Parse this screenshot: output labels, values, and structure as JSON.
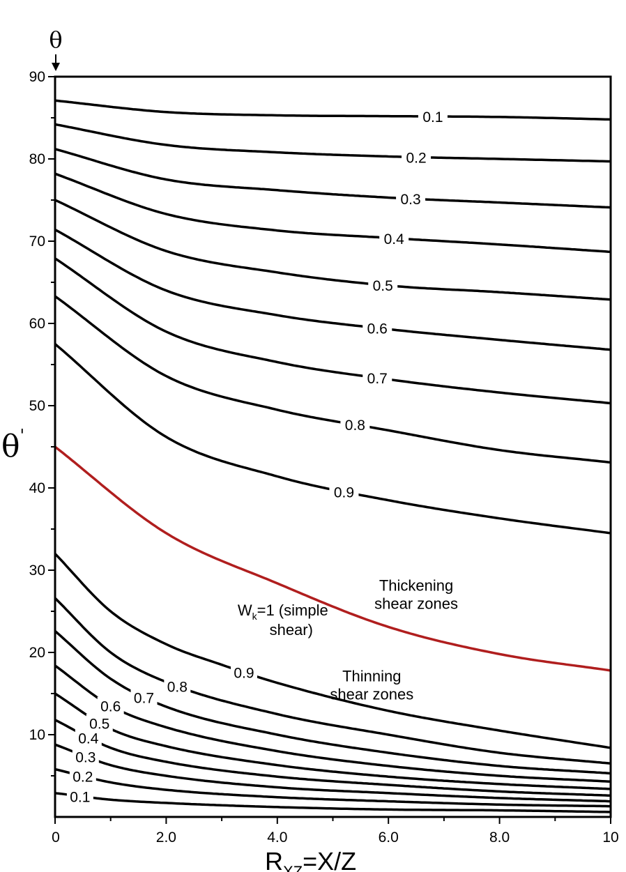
{
  "chart_data": {
    "type": "line",
    "top_label": "θ",
    "ylabel": "θ'",
    "xlabel": {
      "main": "R",
      "sub": "XZ",
      "rest": "=X/Z"
    },
    "xlim": [
      0,
      10
    ],
    "ylim": [
      0,
      90
    ],
    "x_ticks": [
      {
        "value": 0,
        "label": "0"
      },
      {
        "value": 2,
        "label": "2.0"
      },
      {
        "value": 4,
        "label": "4.0"
      },
      {
        "value": 6,
        "label": "6.0"
      },
      {
        "value": 8,
        "label": "8.0"
      },
      {
        "value": 10,
        "label": "10"
      }
    ],
    "y_ticks": [
      {
        "value": 10,
        "label": "10"
      },
      {
        "value": 20,
        "label": "20"
      },
      {
        "value": 30,
        "label": "30"
      },
      {
        "value": 40,
        "label": "40"
      },
      {
        "value": 50,
        "label": "50"
      },
      {
        "value": 60,
        "label": "60"
      },
      {
        "value": 70,
        "label": "70"
      },
      {
        "value": 80,
        "label": "80"
      },
      {
        "value": 90,
        "label": "90"
      }
    ],
    "grid": false,
    "series": [
      {
        "name": "0.1",
        "group": "thickening",
        "color": "#000000",
        "x": [
          0,
          2,
          4,
          6,
          8,
          10
        ],
        "y": [
          87.1,
          85.7,
          85.3,
          85.2,
          85.1,
          84.8
        ],
        "label_at": 6.8
      },
      {
        "name": "0.2",
        "group": "thickening",
        "color": "#000000",
        "x": [
          0,
          2,
          4,
          6,
          8,
          10
        ],
        "y": [
          84.2,
          81.7,
          80.8,
          80.3,
          80.0,
          79.7
        ],
        "label_at": 6.5
      },
      {
        "name": "0.3",
        "group": "thickening",
        "color": "#000000",
        "x": [
          0,
          2,
          4,
          6,
          8,
          10
        ],
        "y": [
          81.2,
          77.5,
          76.2,
          75.3,
          74.7,
          74.1
        ],
        "label_at": 6.4
      },
      {
        "name": "0.4",
        "group": "thickening",
        "color": "#000000",
        "x": [
          0,
          2,
          4,
          6,
          8,
          10
        ],
        "y": [
          78.2,
          73.3,
          71.3,
          70.4,
          69.6,
          68.7
        ],
        "label_at": 6.1
      },
      {
        "name": "0.5",
        "group": "thickening",
        "color": "#000000",
        "x": [
          0,
          2,
          4,
          6,
          8,
          10
        ],
        "y": [
          75.0,
          68.8,
          66.2,
          64.6,
          63.8,
          62.9
        ],
        "label_at": 5.9
      },
      {
        "name": "0.6",
        "group": "thickening",
        "color": "#000000",
        "x": [
          0,
          2,
          4,
          6,
          8,
          10
        ],
        "y": [
          71.4,
          64.0,
          61.0,
          59.3,
          58.0,
          56.8
        ],
        "label_at": 5.8
      },
      {
        "name": "0.7",
        "group": "thickening",
        "color": "#000000",
        "x": [
          0,
          2,
          4,
          6,
          8,
          10
        ],
        "y": [
          67.9,
          59.0,
          55.3,
          53.2,
          51.6,
          50.3
        ],
        "label_at": 5.8
      },
      {
        "name": "0.8",
        "group": "thickening",
        "color": "#000000",
        "x": [
          0,
          2,
          4,
          6,
          8,
          10
        ],
        "y": [
          63.3,
          53.6,
          49.5,
          47.0,
          44.6,
          43.1
        ],
        "label_at": 5.4
      },
      {
        "name": "0.9",
        "group": "thickening",
        "color": "#000000",
        "x": [
          0,
          2,
          4,
          6,
          8,
          10
        ],
        "y": [
          57.5,
          46.2,
          41.4,
          38.5,
          36.3,
          34.5
        ],
        "label_at": 5.2
      },
      {
        "name": "Wk=1 (simple shear)",
        "group": "simple",
        "color": "#b01e1e",
        "x": [
          0,
          2,
          4,
          6,
          8,
          10
        ],
        "y": [
          45.0,
          34.5,
          28.4,
          23.1,
          19.8,
          17.8
        ],
        "label_at": null
      },
      {
        "name": "0.9",
        "group": "thinning",
        "color": "#000000",
        "x": [
          0,
          1,
          2,
          3,
          4,
          6,
          8,
          10
        ],
        "y": [
          32.0,
          25.0,
          21.0,
          18.5,
          16.3,
          12.9,
          10.5,
          8.4
        ],
        "label_at": 3.4
      },
      {
        "name": "0.8",
        "group": "thinning",
        "color": "#000000",
        "x": [
          0,
          1,
          2,
          4,
          6,
          8,
          10
        ],
        "y": [
          26.6,
          20.0,
          16.4,
          12.5,
          10.0,
          7.8,
          6.5
        ],
        "label_at": 2.2
      },
      {
        "name": "0.7",
        "group": "thinning",
        "color": "#000000",
        "x": [
          0,
          1,
          2,
          4,
          6,
          8,
          10
        ],
        "y": [
          22.6,
          16.8,
          13.4,
          10.0,
          7.8,
          6.2,
          5.3
        ],
        "label_at": 1.6
      },
      {
        "name": "0.6",
        "group": "thinning",
        "color": "#000000",
        "x": [
          0,
          1,
          2,
          4,
          6,
          8,
          10
        ],
        "y": [
          18.4,
          13.5,
          10.9,
          8.0,
          6.2,
          5.0,
          4.3
        ],
        "label_at": 1.0
      },
      {
        "name": "0.5",
        "group": "thinning",
        "color": "#000000",
        "x": [
          0,
          1,
          2,
          4,
          6,
          8,
          10
        ],
        "y": [
          15.0,
          10.7,
          8.6,
          6.3,
          4.9,
          4.0,
          3.4
        ],
        "label_at": 0.8
      },
      {
        "name": "0.4",
        "group": "thinning",
        "color": "#000000",
        "x": [
          0,
          1,
          2,
          4,
          6,
          8,
          10
        ],
        "y": [
          11.8,
          8.4,
          6.7,
          4.9,
          3.9,
          3.1,
          2.6
        ],
        "label_at": 0.6
      },
      {
        "name": "0.3",
        "group": "thinning",
        "color": "#000000",
        "x": [
          0,
          1,
          2,
          4,
          6,
          8,
          10
        ],
        "y": [
          8.8,
          6.3,
          5.0,
          3.6,
          2.9,
          2.3,
          1.9
        ],
        "label_at": 0.55
      },
      {
        "name": "0.2",
        "group": "thinning",
        "color": "#000000",
        "x": [
          0,
          1,
          2,
          4,
          6,
          8,
          10
        ],
        "y": [
          5.8,
          4.2,
          3.3,
          2.4,
          1.9,
          1.5,
          1.3
        ],
        "label_at": 0.5
      },
      {
        "name": "0.1",
        "group": "thinning",
        "color": "#000000",
        "x": [
          0,
          1,
          2,
          4,
          6,
          8,
          10
        ],
        "y": [
          2.9,
          2.1,
          1.7,
          1.2,
          0.9,
          0.8,
          0.6
        ],
        "label_at": 0.45
      }
    ],
    "annotations": [
      {
        "lines": [
          "Thickening",
          "shear zones"
        ],
        "x": 6.5,
        "y": 27.5
      },
      {
        "lines": [
          "Thinning",
          "shear zones"
        ],
        "x": 5.7,
        "y": 16.5
      },
      {
        "lines": [
          "W",
          "k",
          "=1 (simple",
          "shear)"
        ],
        "x": 4.1,
        "y": 24.5
      }
    ]
  }
}
